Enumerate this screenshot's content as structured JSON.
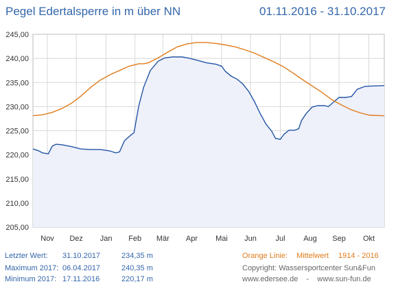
{
  "header": {
    "title": "Pegel Edertalsperre in m über NN",
    "period": "01.11.2016 - 31.10.2017"
  },
  "footer": {
    "last_label": "Letzter Wert:",
    "last_date": "31.10.2017",
    "last_value": "234,35 m",
    "max_label": "Maximum 2017:",
    "max_date": "06.04.2017",
    "max_value": "240,35 m",
    "min_label": "Minimum  2017:",
    "min_date": "17.11.2016",
    "min_value": "220,17 m",
    "orange_label": "Orange Linie:",
    "orange_text": "Mittelwert",
    "orange_years": "1914 - 2016",
    "copyright": "Copyright: Wassersportcenter Sun&Fun",
    "websites": "www.edersee.de    -    www.sun-fun.de"
  },
  "colors": {
    "level_line": "#2255a4",
    "level_fill": "#eef0fa",
    "mean_line": "#e07b1a",
    "grid": "#d8d8d8",
    "axis_text": "#333333",
    "title": "#3366aa"
  },
  "chart_data": {
    "type": "line",
    "title": "Pegel Edertalsperre in m über NN",
    "xlabel": "",
    "ylabel": "",
    "x_range_days": [
      0,
      365
    ],
    "ylim": [
      205,
      245
    ],
    "yticks": [
      "205,00",
      "210,00",
      "215,00",
      "220,00",
      "225,00",
      "230,00",
      "235,00",
      "240,00",
      "245,00"
    ],
    "ytick_values": [
      205,
      210,
      215,
      220,
      225,
      230,
      235,
      240,
      245
    ],
    "months": [
      {
        "label": "Nov",
        "day": 15
      },
      {
        "label": "Dez",
        "day": 45
      },
      {
        "label": "Jan",
        "day": 76
      },
      {
        "label": "Feb",
        "day": 106
      },
      {
        "label": "Mär",
        "day": 135
      },
      {
        "label": "Apr",
        "day": 165
      },
      {
        "label": "Mai",
        "day": 196
      },
      {
        "label": "Jun",
        "day": 226
      },
      {
        "label": "Jul",
        "day": 257
      },
      {
        "label": "Aug",
        "day": 288
      },
      {
        "label": "Sep",
        "day": 318
      },
      {
        "label": "Okt",
        "day": 349
      }
    ],
    "grid": true,
    "series": [
      {
        "name": "",
        "filled": true,
        "points": [
          [
            0,
            221.2
          ],
          [
            5,
            220.9
          ],
          [
            10,
            220.4
          ],
          [
            16,
            220.2
          ],
          [
            20,
            221.8
          ],
          [
            24,
            222.2
          ],
          [
            30,
            222.1
          ],
          [
            40,
            221.7
          ],
          [
            50,
            221.2
          ],
          [
            60,
            221.1
          ],
          [
            70,
            221.1
          ],
          [
            80,
            220.8
          ],
          [
            86,
            220.4
          ],
          [
            90,
            220.6
          ],
          [
            95,
            222.9
          ],
          [
            100,
            223.8
          ],
          [
            105,
            224.6
          ],
          [
            110,
            230.2
          ],
          [
            115,
            234.0
          ],
          [
            122,
            237.5
          ],
          [
            130,
            239.4
          ],
          [
            137,
            240.1
          ],
          [
            145,
            240.3
          ],
          [
            155,
            240.3
          ],
          [
            163,
            240.0
          ],
          [
            171,
            239.6
          ],
          [
            180,
            239.1
          ],
          [
            190,
            238.8
          ],
          [
            196,
            238.4
          ],
          [
            200,
            237.3
          ],
          [
            206,
            236.3
          ],
          [
            212,
            235.7
          ],
          [
            218,
            234.7
          ],
          [
            224,
            233.2
          ],
          [
            230,
            231.1
          ],
          [
            236,
            228.6
          ],
          [
            242,
            226.4
          ],
          [
            248,
            224.9
          ],
          [
            252,
            223.4
          ],
          [
            257,
            223.2
          ],
          [
            261,
            224.3
          ],
          [
            266,
            225.1
          ],
          [
            272,
            225.1
          ],
          [
            276,
            225.4
          ],
          [
            279,
            227.1
          ],
          [
            284,
            228.6
          ],
          [
            290,
            229.9
          ],
          [
            296,
            230.2
          ],
          [
            303,
            230.2
          ],
          [
            307,
            230.0
          ],
          [
            312,
            230.9
          ],
          [
            318,
            231.9
          ],
          [
            325,
            231.9
          ],
          [
            331,
            232.1
          ],
          [
            337,
            233.6
          ],
          [
            345,
            234.2
          ],
          [
            355,
            234.3
          ],
          [
            365,
            234.35
          ]
        ]
      },
      {
        "name": "Mittelwert 1914 - 2016",
        "filled": false,
        "points": [
          [
            0,
            228.1
          ],
          [
            10,
            228.3
          ],
          [
            20,
            228.8
          ],
          [
            30,
            229.6
          ],
          [
            40,
            230.7
          ],
          [
            50,
            232.2
          ],
          [
            60,
            234.0
          ],
          [
            70,
            235.5
          ],
          [
            80,
            236.6
          ],
          [
            90,
            237.5
          ],
          [
            100,
            238.4
          ],
          [
            110,
            238.9
          ],
          [
            115,
            238.9
          ],
          [
            120,
            239.1
          ],
          [
            130,
            240.1
          ],
          [
            140,
            241.3
          ],
          [
            150,
            242.4
          ],
          [
            160,
            243.0
          ],
          [
            170,
            243.3
          ],
          [
            180,
            243.3
          ],
          [
            190,
            243.1
          ],
          [
            200,
            242.8
          ],
          [
            210,
            242.4
          ],
          [
            220,
            241.8
          ],
          [
            230,
            241.1
          ],
          [
            240,
            240.2
          ],
          [
            250,
            239.3
          ],
          [
            260,
            238.3
          ],
          [
            270,
            237.0
          ],
          [
            280,
            235.6
          ],
          [
            290,
            234.3
          ],
          [
            300,
            233.0
          ],
          [
            310,
            231.5
          ],
          [
            320,
            230.4
          ],
          [
            330,
            229.4
          ],
          [
            340,
            228.7
          ],
          [
            350,
            228.2
          ],
          [
            365,
            228.1
          ]
        ]
      }
    ]
  }
}
